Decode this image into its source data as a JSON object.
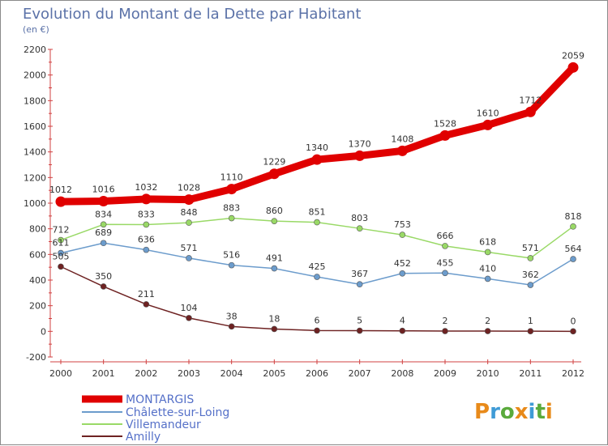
{
  "chart_data": {
    "type": "line",
    "title": "Evolution du Montant de la Dette par Habitant",
    "subtitle": "(en €)",
    "xlabel": "",
    "ylabel": "",
    "ylim": [
      -200,
      2200
    ],
    "yticks": [
      -200,
      0,
      200,
      400,
      600,
      800,
      1000,
      1200,
      1400,
      1600,
      1800,
      2000,
      2200
    ],
    "categories": [
      "2000",
      "2001",
      "2002",
      "2003",
      "2004",
      "2005",
      "2006",
      "2007",
      "2008",
      "2009",
      "2010",
      "2011",
      "2012"
    ],
    "series": [
      {
        "name": "MONTARGIS",
        "color": "#e00000",
        "values": [
          1012,
          1016,
          1032,
          1028,
          1110,
          1229,
          1340,
          1370,
          1408,
          1528,
          1610,
          1712,
          2059
        ]
      },
      {
        "name": "Châlette-sur-Loing",
        "color": "#6c9ccc",
        "values": [
          611,
          689,
          636,
          571,
          516,
          491,
          425,
          367,
          452,
          455,
          410,
          362,
          564
        ]
      },
      {
        "name": "Villemandeur",
        "color": "#99d966",
        "values": [
          712,
          834,
          833,
          848,
          883,
          860,
          851,
          803,
          753,
          666,
          618,
          571,
          818
        ]
      },
      {
        "name": "Amilly",
        "color": "#6e2222",
        "values": [
          505,
          350,
          211,
          104,
          38,
          18,
          6,
          5,
          4,
          2,
          2,
          1,
          0
        ]
      }
    ]
  },
  "logo": {
    "text": "Proxiti",
    "colors": [
      "#e88a1a",
      "#3f9bd6",
      "#5aaa3c"
    ]
  }
}
